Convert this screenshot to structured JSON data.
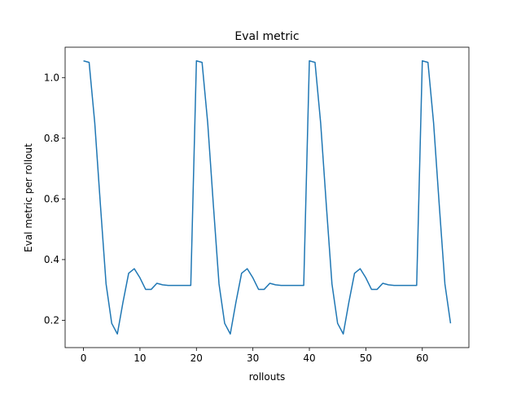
{
  "chart_data": {
    "type": "line",
    "title": "Eval metric",
    "xlabel": "rollouts",
    "ylabel": "Eval metric per rollout",
    "xlim": [
      -3.25,
      68.25
    ],
    "ylim": [
      0.11,
      1.1
    ],
    "xticks": [
      0,
      10,
      20,
      30,
      40,
      50,
      60
    ],
    "yticks": [
      0.2,
      0.4,
      0.6,
      0.8,
      1.0
    ],
    "ytick_labels": [
      "0.2",
      "0.4",
      "0.6",
      "0.8",
      "1.0"
    ],
    "grid": false,
    "line_color": "#1f77b4",
    "series": [
      {
        "x": [
          0,
          1,
          2,
          3,
          4,
          5,
          6,
          7,
          8,
          9,
          10,
          11,
          12,
          13,
          14,
          15,
          16,
          17,
          18,
          19,
          20,
          21,
          22,
          23,
          24,
          25,
          26,
          27,
          28,
          29,
          30,
          31,
          32,
          33,
          34,
          35,
          36,
          37,
          38,
          39,
          40,
          41,
          42,
          43,
          44,
          45,
          46,
          47,
          48,
          49,
          50,
          51,
          52,
          53,
          54,
          55,
          56,
          57,
          58,
          59,
          60,
          61,
          62,
          63,
          64,
          65
        ],
        "y": [
          1.055,
          1.05,
          0.85,
          0.58,
          0.32,
          0.19,
          0.155,
          0.26,
          0.355,
          0.37,
          0.34,
          0.302,
          0.302,
          0.322,
          0.317,
          0.315,
          0.315,
          0.315,
          0.315,
          0.315,
          1.055,
          1.05,
          0.85,
          0.58,
          0.32,
          0.19,
          0.155,
          0.26,
          0.355,
          0.37,
          0.34,
          0.302,
          0.302,
          0.322,
          0.317,
          0.315,
          0.315,
          0.315,
          0.315,
          0.315,
          1.055,
          1.05,
          0.85,
          0.58,
          0.32,
          0.19,
          0.155,
          0.26,
          0.355,
          0.37,
          0.34,
          0.302,
          0.302,
          0.322,
          0.317,
          0.315,
          0.315,
          0.315,
          0.315,
          0.315,
          1.055,
          1.05,
          0.85,
          0.58,
          0.32,
          0.19
        ]
      }
    ]
  }
}
